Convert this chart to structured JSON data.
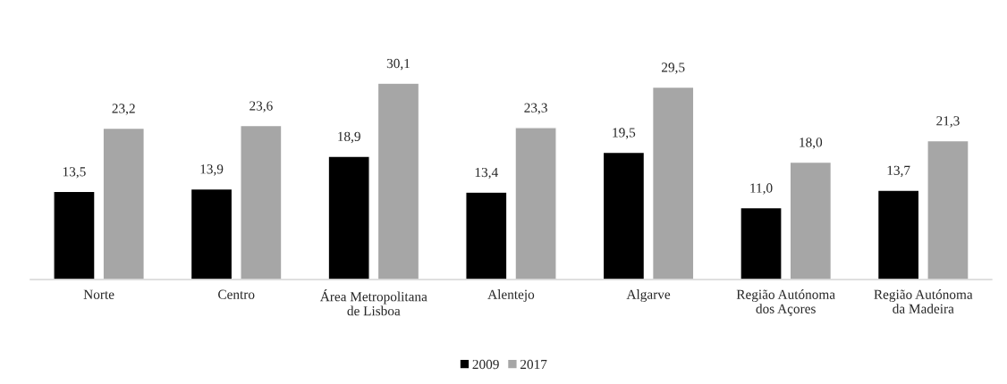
{
  "chart_data": {
    "type": "bar",
    "categories": [
      "Norte",
      "Centro",
      "Área Metropolitana\nde Lisboa",
      "Alentejo",
      "Algarve",
      "Região Autónoma\ndos Açores",
      "Região Autónoma\nda Madeira"
    ],
    "series": [
      {
        "name": "2009",
        "color": "#000000",
        "values": [
          13.5,
          13.9,
          18.9,
          13.4,
          19.5,
          11.0,
          13.7
        ],
        "value_labels": [
          "13,5",
          "13,9",
          "18,9",
          "13,4",
          "19,5",
          "11,0",
          "13,7"
        ]
      },
      {
        "name": "2017",
        "color": "#a6a6a6",
        "values": [
          23.2,
          23.6,
          30.1,
          23.3,
          29.5,
          18.0,
          21.3
        ],
        "value_labels": [
          "23,2",
          "23,6",
          "30,1",
          "23,3",
          "29,5",
          "18,0",
          "21,3"
        ]
      }
    ],
    "legend": "bottom",
    "grid": false
  }
}
